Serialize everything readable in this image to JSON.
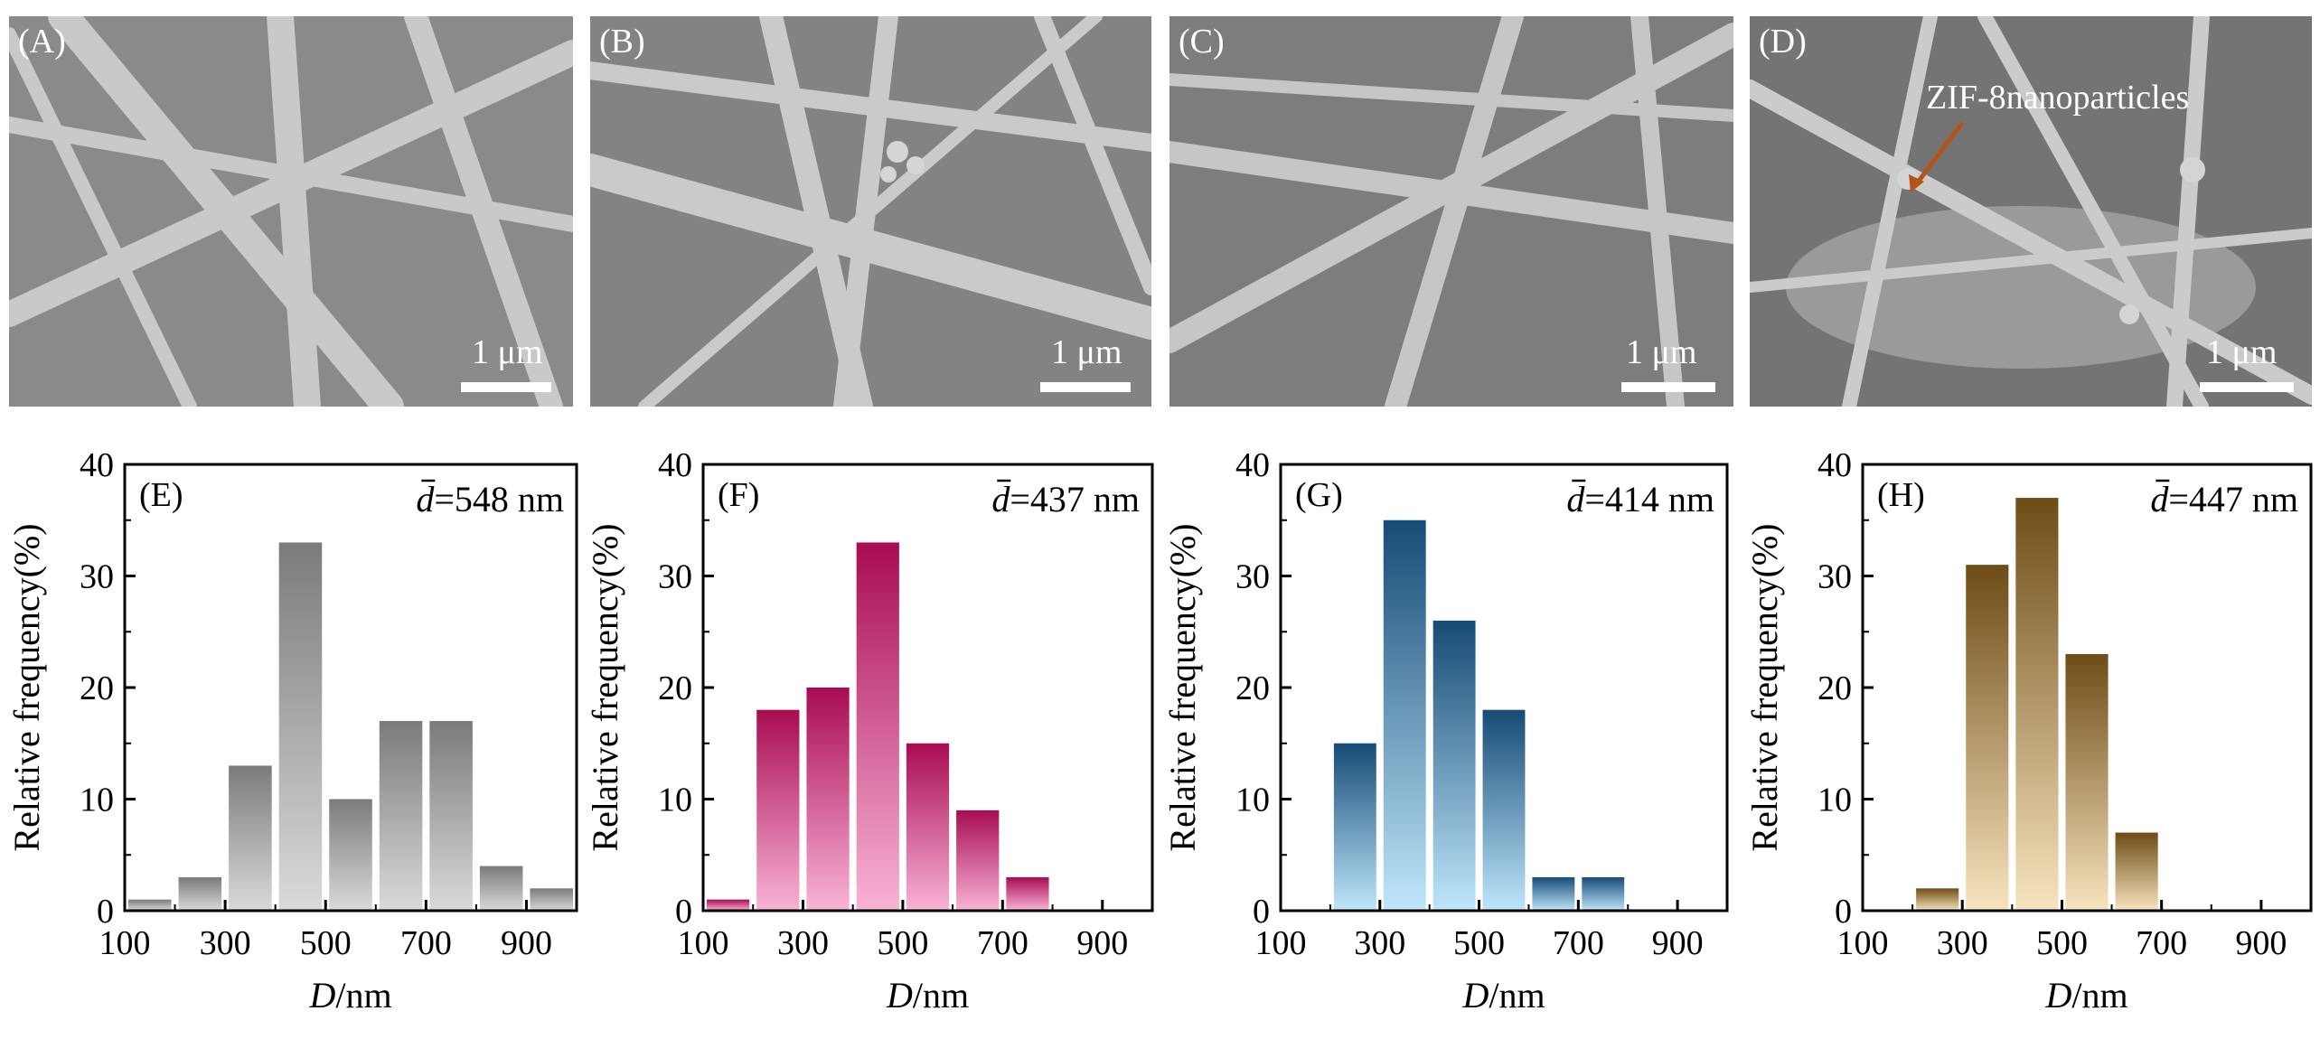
{
  "sem_panels": [
    {
      "label": "(A)",
      "scale": "1 μm",
      "annotation": ""
    },
    {
      "label": "(B)",
      "scale": "1 μm",
      "annotation": ""
    },
    {
      "label": "(C)",
      "scale": "1 μm",
      "annotation": ""
    },
    {
      "label": "(D)",
      "scale": "1 μm",
      "annotation": "ZIF-8nanoparticles"
    }
  ],
  "chart_data": [
    {
      "type": "bar",
      "panel_label": "(E)",
      "mean_symbol": "d",
      "mean_text": "=548 nm",
      "x": [
        150,
        250,
        350,
        450,
        550,
        650,
        750,
        850,
        950
      ],
      "values": [
        1,
        3,
        13,
        33,
        10,
        17,
        17,
        4,
        2
      ],
      "xlim": [
        100,
        1000
      ],
      "ylim": [
        0,
        40
      ],
      "xticks": [
        100,
        300,
        500,
        700,
        900
      ],
      "yticks": [
        0,
        10,
        20,
        30,
        40
      ],
      "xlabel_italic": "D",
      "xlabel_rest": "/nm",
      "ylabel": "Relative frequency(%)",
      "colors": {
        "top": "#7b7b7b",
        "bottom": "#dadada"
      }
    },
    {
      "type": "bar",
      "panel_label": "(F)",
      "mean_symbol": "d",
      "mean_text": "=437 nm",
      "x": [
        150,
        250,
        350,
        450,
        550,
        650,
        750
      ],
      "values": [
        1,
        18,
        20,
        33,
        15,
        9,
        3
      ],
      "xlim": [
        100,
        1000
      ],
      "ylim": [
        0,
        40
      ],
      "xticks": [
        100,
        300,
        500,
        700,
        900
      ],
      "yticks": [
        0,
        10,
        20,
        30,
        40
      ],
      "xlabel_italic": "D",
      "xlabel_rest": "/nm",
      "ylabel": "Relative frequency(%)",
      "colors": {
        "top": "#a80c52",
        "bottom": "#f9b3d6"
      }
    },
    {
      "type": "bar",
      "panel_label": "(G)",
      "mean_symbol": "d",
      "mean_text": "=414 nm",
      "x": [
        250,
        350,
        450,
        550,
        650,
        750
      ],
      "values": [
        15,
        35,
        26,
        18,
        3,
        3
      ],
      "xlim": [
        100,
        1000
      ],
      "ylim": [
        0,
        40
      ],
      "xticks": [
        100,
        300,
        500,
        700,
        900
      ],
      "yticks": [
        0,
        10,
        20,
        30,
        40
      ],
      "xlabel_italic": "D",
      "xlabel_rest": "/nm",
      "ylabel": "Relative frequency(%)",
      "colors": {
        "top": "#164b76",
        "bottom": "#bfe6fb"
      }
    },
    {
      "type": "bar",
      "panel_label": "(H)",
      "mean_symbol": "d",
      "mean_text": "=447 nm",
      "x": [
        250,
        350,
        450,
        550,
        650
      ],
      "values": [
        2,
        31,
        37,
        23,
        7
      ],
      "xlim": [
        100,
        1000
      ],
      "ylim": [
        0,
        40
      ],
      "xticks": [
        100,
        300,
        500,
        700,
        900
      ],
      "yticks": [
        0,
        10,
        20,
        30,
        40
      ],
      "xlabel_italic": "D",
      "xlabel_rest": "/nm",
      "ylabel": "Relative frequency(%)",
      "colors": {
        "top": "#6e4c16",
        "bottom": "#f7e4be"
      }
    }
  ]
}
